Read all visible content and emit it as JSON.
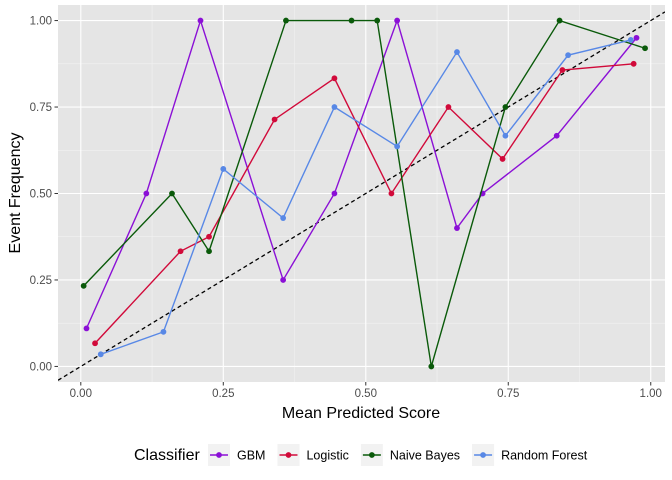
{
  "chart_data": {
    "type": "line",
    "xlabel": "Mean Predicted Score",
    "ylabel": "Event Frequency",
    "xlim": [
      -0.04,
      1.025
    ],
    "ylim": [
      -0.045,
      1.045
    ],
    "x_ticks": [
      0.0,
      0.25,
      0.5,
      0.75,
      1.0
    ],
    "x_tick_labels": [
      "0.00",
      "0.25",
      "0.50",
      "0.75",
      "1.00"
    ],
    "y_ticks": [
      0.0,
      0.25,
      0.5,
      0.75,
      1.0
    ],
    "y_tick_labels": [
      "0.00",
      "0.25",
      "0.50",
      "0.75",
      "1.00"
    ],
    "grid": true,
    "background": "#e5e5e5",
    "reference_line": {
      "style": "dashed",
      "x": [
        -0.04,
        1.025
      ],
      "y": [
        -0.04,
        1.025
      ],
      "color": "#000000"
    },
    "legend": {
      "title": "Classifier",
      "position": "bottom"
    },
    "series": [
      {
        "name": "GBM",
        "color": "#8b10d6",
        "x": [
          0.01,
          0.115,
          0.21,
          0.355,
          0.445,
          0.555,
          0.66,
          0.705,
          0.835,
          0.975
        ],
        "y": [
          0.11,
          0.5,
          1.0,
          0.25,
          0.5,
          1.0,
          0.4,
          0.5,
          0.667,
          0.95
        ]
      },
      {
        "name": "Logistic",
        "color": "#d10a3a",
        "x": [
          0.025,
          0.175,
          0.225,
          0.34,
          0.445,
          0.545,
          0.645,
          0.74,
          0.845,
          0.97
        ],
        "y": [
          0.067,
          0.333,
          0.375,
          0.714,
          0.833,
          0.5,
          0.75,
          0.6,
          0.857,
          0.875
        ]
      },
      {
        "name": "Naive Bayes",
        "color": "#0a5a0a",
        "x": [
          0.005,
          0.16,
          0.225,
          0.36,
          0.475,
          0.52,
          0.615,
          0.745,
          0.84,
          0.99
        ],
        "y": [
          0.233,
          0.5,
          0.333,
          1.0,
          1.0,
          1.0,
          0.0,
          0.75,
          1.0,
          0.92
        ]
      },
      {
        "name": "Random Forest",
        "color": "#5888e6",
        "x": [
          0.035,
          0.145,
          0.25,
          0.355,
          0.445,
          0.555,
          0.66,
          0.745,
          0.855,
          0.965
        ],
        "y": [
          0.035,
          0.1,
          0.571,
          0.429,
          0.75,
          0.636,
          0.909,
          0.667,
          0.9,
          0.944
        ]
      }
    ]
  }
}
